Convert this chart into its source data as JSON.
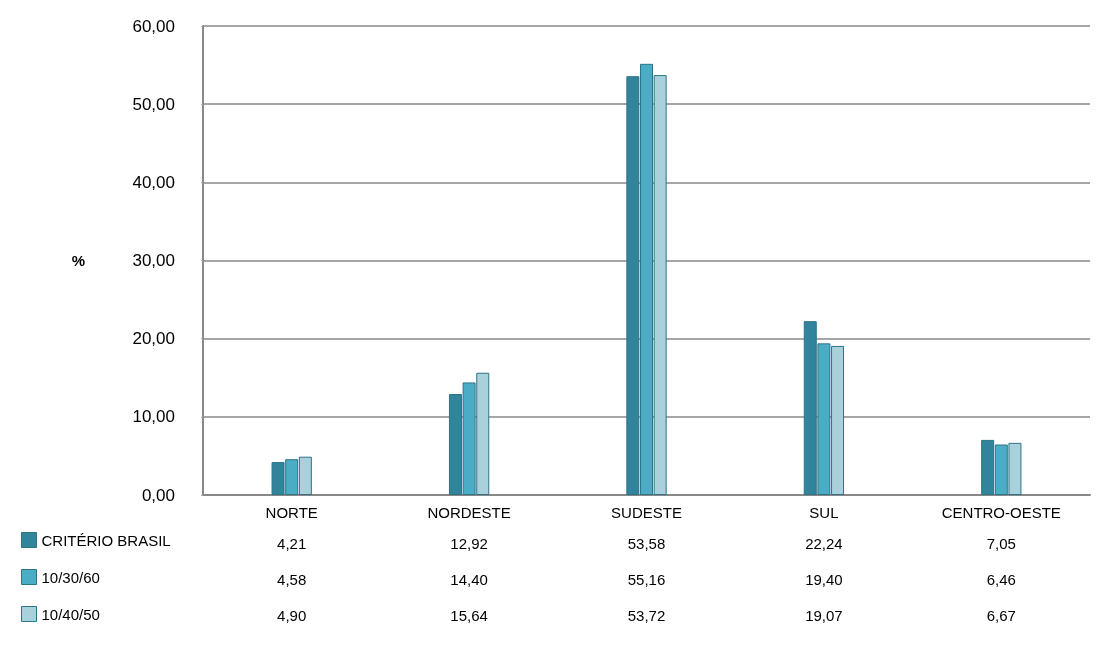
{
  "chart_data": {
    "type": "bar",
    "ylabel": "%",
    "categories": [
      "NORTE",
      "NORDESTE",
      "SUDESTE",
      "SUL",
      "CENTRO-OESTE"
    ],
    "series": [
      {
        "name": "CRITÉRIO BRASIL",
        "color": "#31849b",
        "values": [
          4.21,
          12.92,
          53.58,
          22.24,
          7.05
        ],
        "value_labels": [
          "4,21",
          "12,92",
          "53,58",
          "22,24",
          "7,05"
        ]
      },
      {
        "name": "10/30/60",
        "color": "#4bacc6",
        "values": [
          4.58,
          14.4,
          55.16,
          19.4,
          6.46
        ],
        "value_labels": [
          "4,58",
          "14,40",
          "55,16",
          "19,40",
          "6,46"
        ]
      },
      {
        "name": "10/40/50",
        "color": "#a9d1dc",
        "values": [
          4.9,
          15.64,
          53.72,
          19.07,
          6.67
        ],
        "value_labels": [
          "4,90",
          "15,64",
          "53,72",
          "19,07",
          "6,67"
        ]
      }
    ],
    "ylim": [
      0,
      60
    ],
    "yticks": [
      {
        "value": 0,
        "label": "0,00"
      },
      {
        "value": 10,
        "label": "10,00"
      },
      {
        "value": 20,
        "label": "20,00"
      },
      {
        "value": 30,
        "label": "30,00"
      },
      {
        "value": 40,
        "label": "40,00"
      },
      {
        "value": 50,
        "label": "50,00"
      },
      {
        "value": 60,
        "label": "60,00"
      }
    ],
    "grid": "y",
    "legend": "bottom left"
  }
}
